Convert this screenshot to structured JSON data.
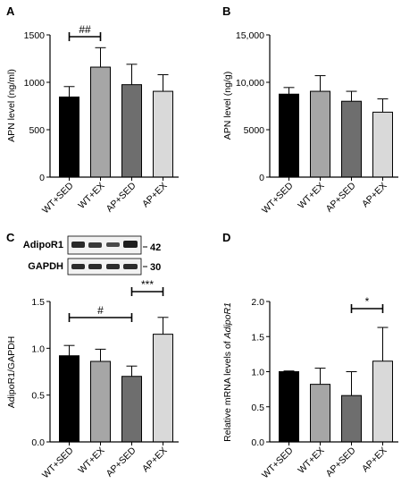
{
  "colors": [
    "#000000",
    "#a6a6a6",
    "#6e6e6e",
    "#d9d9d9"
  ],
  "panels": [
    {
      "letter": "A",
      "chart_data": {
        "type": "bar",
        "categories": [
          "WT+SED",
          "WT+EX",
          "AP+SED",
          "AP+EX"
        ],
        "values": [
          845,
          1160,
          975,
          905
        ],
        "errors": [
          110,
          205,
          215,
          175
        ],
        "ylabel": "APN level (ng/ml)",
        "ylim": [
          0,
          1500
        ],
        "yticks": [
          "0",
          "500",
          "1000",
          "1500"
        ],
        "significance": [
          {
            "from": 0,
            "to": 1,
            "label": "##"
          }
        ]
      }
    },
    {
      "letter": "B",
      "chart_data": {
        "type": "bar",
        "categories": [
          "WT+SED",
          "WT+EX",
          "AP+SED",
          "AP+EX"
        ],
        "values": [
          8750,
          9050,
          8000,
          6850
        ],
        "errors": [
          700,
          1650,
          1050,
          1400
        ],
        "ylabel": "APN level (ng/g)",
        "ylim": [
          0,
          15000
        ],
        "yticks": [
          "0",
          "5000",
          "10,000",
          "15,000"
        ],
        "significance": []
      }
    },
    {
      "letter": "C",
      "chart_data": {
        "type": "bar",
        "categories": [
          "WT+SED",
          "WT+EX",
          "AP+SED",
          "AP+EX"
        ],
        "values": [
          0.92,
          0.86,
          0.7,
          1.15
        ],
        "errors": [
          0.11,
          0.13,
          0.11,
          0.18
        ],
        "ylabel": "AdipoR1/GAPDH",
        "ylim": [
          0,
          1.5
        ],
        "yticks": [
          "0.0",
          "0.5",
          "1.0",
          "1.5"
        ],
        "significance": [
          {
            "from": 0,
            "to": 2,
            "label": "#"
          },
          {
            "from": 2,
            "to": 3,
            "label": "***"
          }
        ]
      },
      "blot": {
        "rows": [
          {
            "name": "AdipoR1",
            "kda": "42"
          },
          {
            "name": "GAPDH",
            "kda": "30"
          }
        ]
      }
    },
    {
      "letter": "D",
      "chart_data": {
        "type": "bar",
        "categories": [
          "WT+SED",
          "WT+EX",
          "AP+SED",
          "AP+EX"
        ],
        "values": [
          1.0,
          0.82,
          0.66,
          1.15
        ],
        "errors": [
          0.01,
          0.23,
          0.34,
          0.48
        ],
        "ylabel_prefix": "Relative mRNA levels of ",
        "ylabel_gene": "AdipoR1",
        "ylim": [
          0,
          2.0
        ],
        "yticks": [
          "0.0",
          "0.5",
          "1.0",
          "1.5",
          "2.0"
        ],
        "significance": [
          {
            "from": 2,
            "to": 3,
            "label": "*"
          }
        ]
      }
    }
  ]
}
